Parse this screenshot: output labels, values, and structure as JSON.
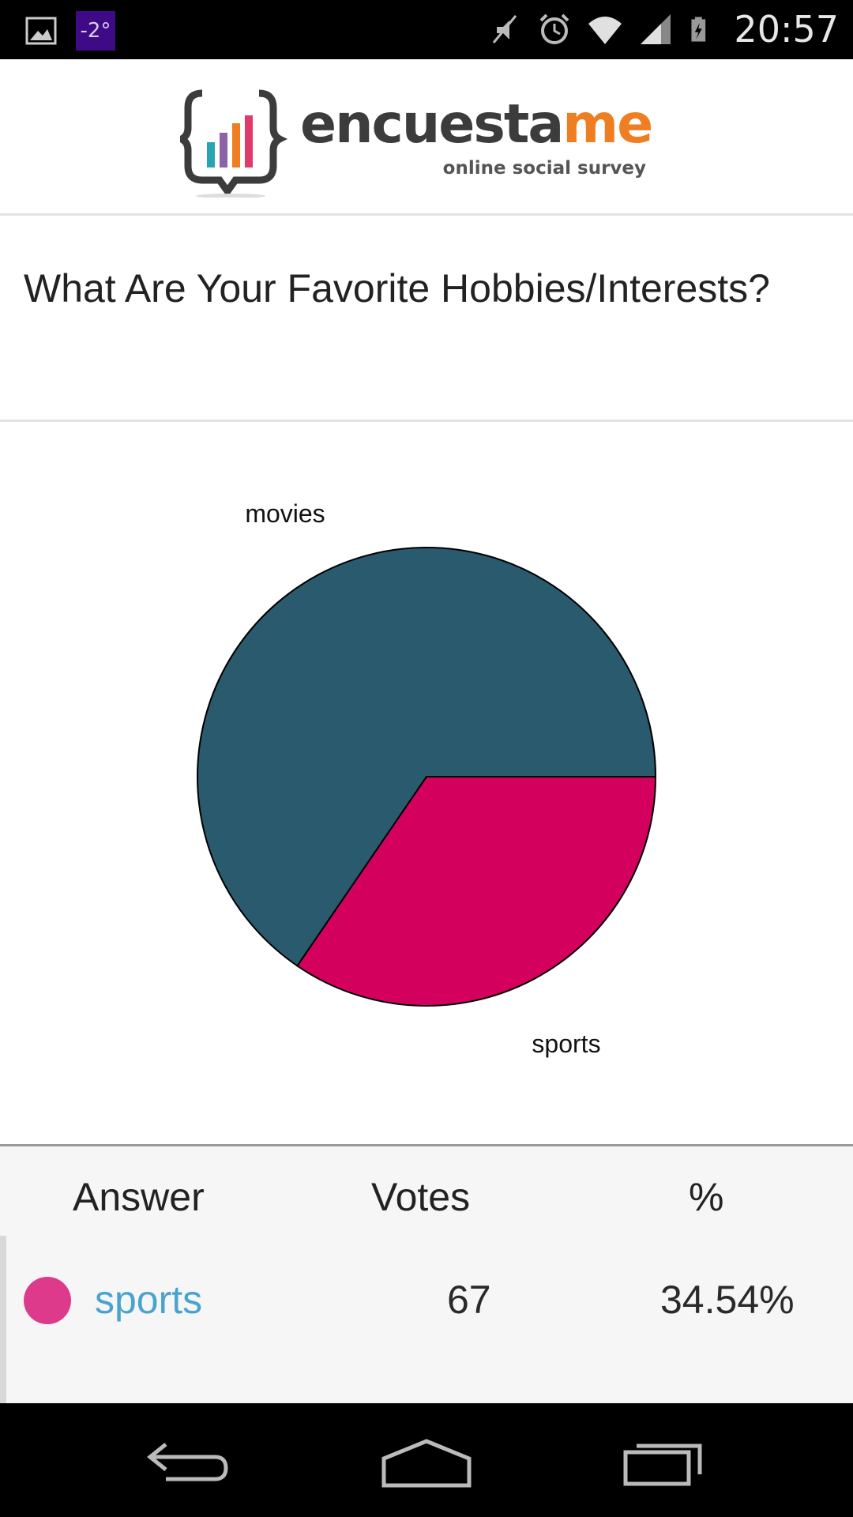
{
  "status_bar": {
    "weather": "-2°",
    "time": "20:57"
  },
  "header": {
    "logo_text_main": "encuesta",
    "logo_text_accent": "me",
    "logo_tagline": "online social survey"
  },
  "question": {
    "title": "What Are Your Favorite Hobbies/Interests?"
  },
  "chart_data": {
    "type": "pie",
    "title": "",
    "slices": [
      {
        "label": "movies",
        "value": 65.46,
        "color": "#2a5a6d"
      },
      {
        "label": "sports",
        "value": 34.54,
        "color": "#d4005e"
      }
    ],
    "legend": "none"
  },
  "table": {
    "headers": {
      "answer": "Answer",
      "votes": "Votes",
      "percent": "%"
    },
    "rows": [
      {
        "answer": "sports",
        "votes": "67",
        "percent": "34.54%",
        "color": "#de3a8c"
      }
    ]
  },
  "colors": {
    "accent_orange": "#ef7d22",
    "link_blue": "#4aa3cf"
  }
}
